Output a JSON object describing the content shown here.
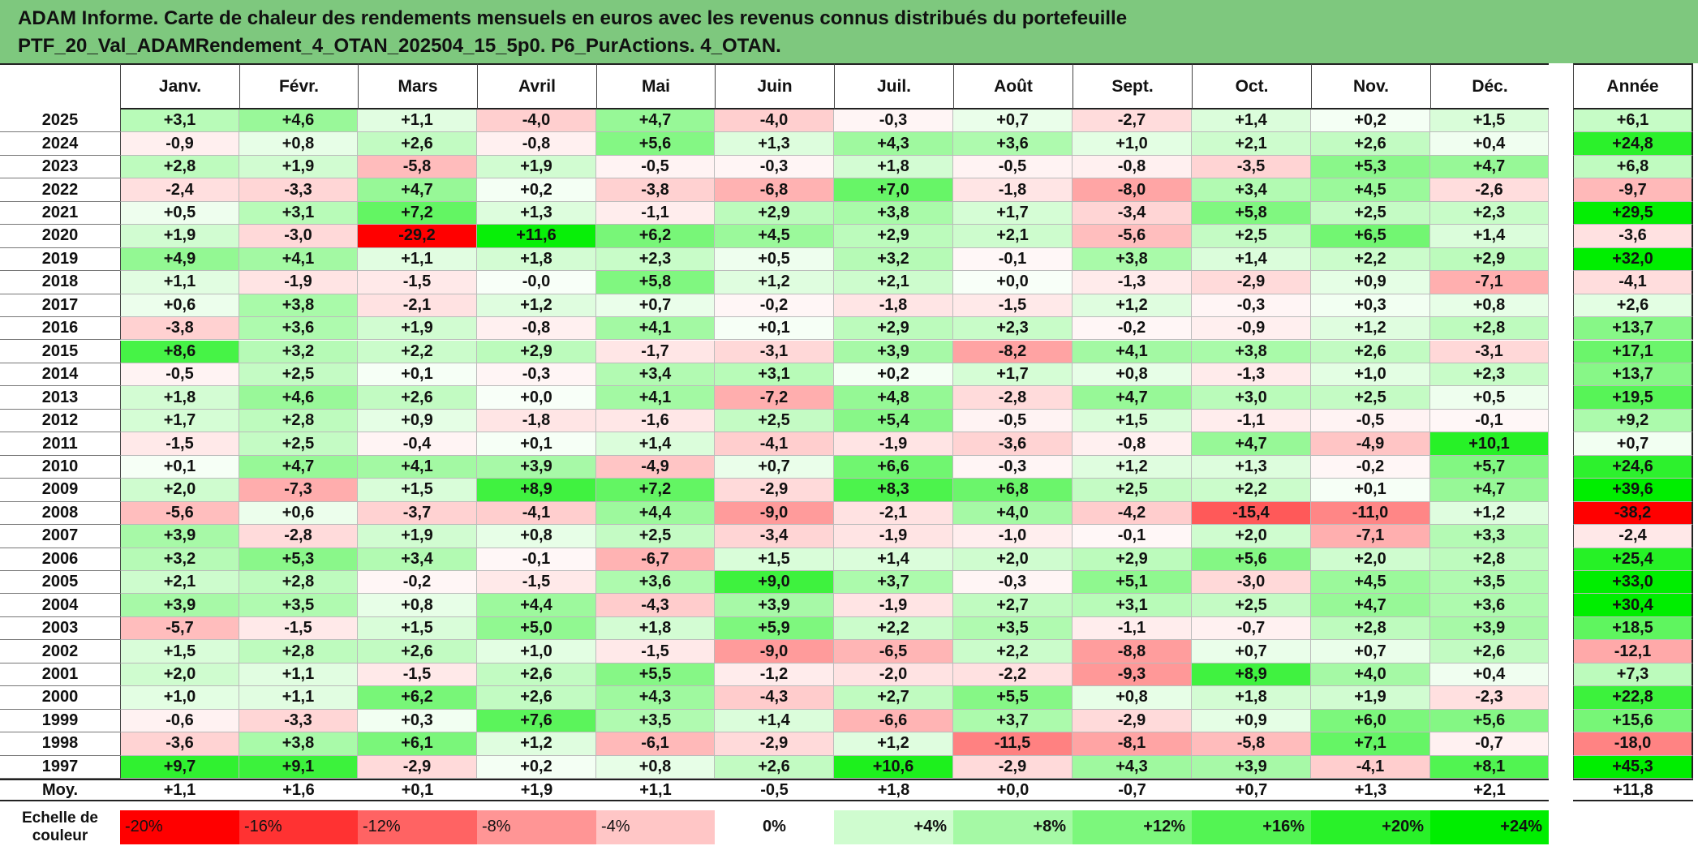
{
  "title": {
    "line1": "ADAM Informe. Carte de chaleur des rendements mensuels en euros avec les revenus connus distribués du portefeuille",
    "line2": "PTF_20_Val_ADAMRendement_4_OTAN_202504_15_5p0. P6_PurActions. 4_OTAN."
  },
  "chart_data": {
    "type": "heatmap",
    "months": [
      "Janv.",
      "Févr.",
      "Mars",
      "Avril",
      "Mai",
      "Juin",
      "Juil.",
      "Août",
      "Sept.",
      "Oct.",
      "Nov.",
      "Déc."
    ],
    "year_header": "Année",
    "rows": [
      {
        "year": "2025",
        "values": [
          "+3,1",
          "+4,6",
          "+1,1",
          "-4,0",
          "+4,7",
          "-4,0",
          "-0,3",
          "+0,7",
          "-2,7",
          "+1,4",
          "+0,2",
          "+1,5"
        ],
        "annual": "+6,1"
      },
      {
        "year": "2024",
        "values": [
          "-0,9",
          "+0,8",
          "+2,6",
          "-0,8",
          "+5,6",
          "+1,3",
          "+4,3",
          "+3,6",
          "+1,0",
          "+2,1",
          "+2,6",
          "+0,4"
        ],
        "annual": "+24,8"
      },
      {
        "year": "2023",
        "values": [
          "+2,8",
          "+1,9",
          "-5,8",
          "+1,9",
          "-0,5",
          "-0,3",
          "+1,8",
          "-0,5",
          "-0,8",
          "-3,5",
          "+5,3",
          "+4,7"
        ],
        "annual": "+6,8"
      },
      {
        "year": "2022",
        "values": [
          "-2,4",
          "-3,3",
          "+4,7",
          "+0,2",
          "-3,8",
          "-6,8",
          "+7,0",
          "-1,8",
          "-8,0",
          "+3,4",
          "+4,5",
          "-2,6"
        ],
        "annual": "-9,7"
      },
      {
        "year": "2021",
        "values": [
          "+0,5",
          "+3,1",
          "+7,2",
          "+1,3",
          "-1,1",
          "+2,9",
          "+3,8",
          "+1,7",
          "-3,4",
          "+5,8",
          "+2,5",
          "+2,3"
        ],
        "annual": "+29,5"
      },
      {
        "year": "2020",
        "values": [
          "+1,9",
          "-3,0",
          "-29,2",
          "+11,6",
          "+6,2",
          "+4,5",
          "+2,9",
          "+2,1",
          "-5,6",
          "+2,5",
          "+6,5",
          "+1,4"
        ],
        "annual": "-3,6"
      },
      {
        "year": "2019",
        "values": [
          "+4,9",
          "+4,1",
          "+1,1",
          "+1,8",
          "+2,3",
          "+0,5",
          "+3,2",
          "-0,1",
          "+3,8",
          "+1,4",
          "+2,2",
          "+2,9"
        ],
        "annual": "+32,0"
      },
      {
        "year": "2018",
        "values": [
          "+1,1",
          "-1,9",
          "-1,5",
          "-0,0",
          "+5,8",
          "+1,2",
          "+2,1",
          "+0,0",
          "-1,3",
          "-2,9",
          "+0,9",
          "-7,1"
        ],
        "annual": "-4,1"
      },
      {
        "year": "2017",
        "values": [
          "+0,6",
          "+3,8",
          "-2,1",
          "+1,2",
          "+0,7",
          "-0,2",
          "-1,8",
          "-1,5",
          "+1,2",
          "-0,3",
          "+0,3",
          "+0,8"
        ],
        "annual": "+2,6"
      },
      {
        "year": "2016",
        "values": [
          "-3,8",
          "+3,6",
          "+1,9",
          "-0,8",
          "+4,1",
          "+0,1",
          "+2,9",
          "+2,3",
          "-0,2",
          "-0,9",
          "+1,2",
          "+2,8"
        ],
        "annual": "+13,7"
      },
      {
        "year": "2015",
        "values": [
          "+8,6",
          "+3,2",
          "+2,2",
          "+2,9",
          "-1,7",
          "-3,1",
          "+3,9",
          "-8,2",
          "+4,1",
          "+3,8",
          "+2,6",
          "-3,1"
        ],
        "annual": "+17,1"
      },
      {
        "year": "2014",
        "values": [
          "-0,5",
          "+2,5",
          "+0,1",
          "-0,3",
          "+3,4",
          "+3,1",
          "+0,2",
          "+1,7",
          "+0,8",
          "-1,3",
          "+1,0",
          "+2,3"
        ],
        "annual": "+13,7"
      },
      {
        "year": "2013",
        "values": [
          "+1,8",
          "+4,6",
          "+2,6",
          "+0,0",
          "+4,1",
          "-7,2",
          "+4,8",
          "-2,8",
          "+4,7",
          "+3,0",
          "+2,5",
          "+0,5"
        ],
        "annual": "+19,5"
      },
      {
        "year": "2012",
        "values": [
          "+1,7",
          "+2,8",
          "+0,9",
          "-1,8",
          "-1,6",
          "+2,5",
          "+5,4",
          "-0,5",
          "+1,5",
          "-1,1",
          "-0,5",
          "-0,1"
        ],
        "annual": "+9,2"
      },
      {
        "year": "2011",
        "values": [
          "-1,5",
          "+2,5",
          "-0,4",
          "+0,1",
          "+1,4",
          "-4,1",
          "-1,9",
          "-3,6",
          "-0,8",
          "+4,7",
          "-4,9",
          "+10,1"
        ],
        "annual": "+0,7"
      },
      {
        "year": "2010",
        "values": [
          "+0,1",
          "+4,7",
          "+4,1",
          "+3,9",
          "-4,9",
          "+0,7",
          "+6,6",
          "-0,3",
          "+1,2",
          "+1,3",
          "-0,2",
          "+5,7"
        ],
        "annual": "+24,6"
      },
      {
        "year": "2009",
        "values": [
          "+2,0",
          "-7,3",
          "+1,5",
          "+8,9",
          "+7,2",
          "-2,9",
          "+8,3",
          "+6,8",
          "+2,5",
          "+2,2",
          "+0,1",
          "+4,7"
        ],
        "annual": "+39,6"
      },
      {
        "year": "2008",
        "values": [
          "-5,6",
          "+0,6",
          "-3,7",
          "-4,1",
          "+4,4",
          "-9,0",
          "-2,1",
          "+4,0",
          "-4,2",
          "-15,4",
          "-11,0",
          "+1,2"
        ],
        "annual": "-38,2"
      },
      {
        "year": "2007",
        "values": [
          "+3,9",
          "-2,8",
          "+1,9",
          "+0,8",
          "+2,5",
          "-3,4",
          "-1,9",
          "-1,0",
          "-0,1",
          "+2,0",
          "-7,1",
          "+3,3"
        ],
        "annual": "-2,4"
      },
      {
        "year": "2006",
        "values": [
          "+3,2",
          "+5,3",
          "+3,4",
          "-0,1",
          "-6,7",
          "+1,5",
          "+1,4",
          "+2,0",
          "+2,9",
          "+5,6",
          "+2,0",
          "+2,8"
        ],
        "annual": "+25,4"
      },
      {
        "year": "2005",
        "values": [
          "+2,1",
          "+2,8",
          "-0,2",
          "-1,5",
          "+3,6",
          "+9,0",
          "+3,7",
          "-0,3",
          "+5,1",
          "-3,0",
          "+4,5",
          "+3,5"
        ],
        "annual": "+33,0"
      },
      {
        "year": "2004",
        "values": [
          "+3,9",
          "+3,5",
          "+0,8",
          "+4,4",
          "-4,3",
          "+3,9",
          "-1,9",
          "+2,7",
          "+3,1",
          "+2,5",
          "+4,7",
          "+3,6"
        ],
        "annual": "+30,4"
      },
      {
        "year": "2003",
        "values": [
          "-5,7",
          "-1,5",
          "+1,5",
          "+5,0",
          "+1,8",
          "+5,9",
          "+2,2",
          "+3,5",
          "-1,1",
          "-0,7",
          "+2,8",
          "+3,9"
        ],
        "annual": "+18,5"
      },
      {
        "year": "2002",
        "values": [
          "+1,5",
          "+2,8",
          "+2,6",
          "+1,0",
          "-1,5",
          "-9,0",
          "-6,5",
          "+2,2",
          "-8,8",
          "+0,7",
          "+0,7",
          "+2,6"
        ],
        "annual": "-12,1"
      },
      {
        "year": "2001",
        "values": [
          "+2,0",
          "+1,1",
          "-1,5",
          "+2,6",
          "+5,5",
          "-1,2",
          "-2,0",
          "-2,2",
          "-9,3",
          "+8,9",
          "+4,0",
          "+0,4"
        ],
        "annual": "+7,3"
      },
      {
        "year": "2000",
        "values": [
          "+1,0",
          "+1,1",
          "+6,2",
          "+2,6",
          "+4,3",
          "-4,3",
          "+2,7",
          "+5,5",
          "+0,8",
          "+1,8",
          "+1,9",
          "-2,3"
        ],
        "annual": "+22,8"
      },
      {
        "year": "1999",
        "values": [
          "-0,6",
          "-3,3",
          "+0,3",
          "+7,6",
          "+3,5",
          "+1,4",
          "-6,6",
          "+3,7",
          "-2,9",
          "+0,9",
          "+6,0",
          "+5,6"
        ],
        "annual": "+15,6"
      },
      {
        "year": "1998",
        "values": [
          "-3,6",
          "+3,8",
          "+6,1",
          "+1,2",
          "-6,1",
          "-2,9",
          "+1,2",
          "-11,5",
          "-8,1",
          "-5,8",
          "+7,1",
          "-0,7"
        ],
        "annual": "-18,0"
      },
      {
        "year": "1997",
        "values": [
          "+9,7",
          "+9,1",
          "-2,9",
          "+0,2",
          "+0,8",
          "+2,6",
          "+10,6",
          "-2,9",
          "+4,3",
          "+3,9",
          "-4,1",
          "+8,1"
        ],
        "annual": "+45,3"
      }
    ],
    "average": {
      "label": "Moy.",
      "values": [
        "+1,1",
        "+1,6",
        "+0,1",
        "+1,9",
        "+1,1",
        "-0,5",
        "+1,8",
        "+0,0",
        "-0,7",
        "+0,7",
        "+1,3",
        "+2,1"
      ],
      "annual": "+11,8"
    },
    "scale": {
      "label_line1": "Echelle de",
      "label_line2": "couleur",
      "items": [
        "-20%",
        "-16%",
        "-12%",
        "-8%",
        "-4%",
        "0%",
        "+4%",
        "+8%",
        "+12%",
        "+16%",
        "+20%",
        "+24%"
      ],
      "levels": [
        -20,
        -16,
        -12,
        -8,
        -4,
        0,
        4,
        8,
        12,
        16,
        20,
        24
      ]
    }
  }
}
